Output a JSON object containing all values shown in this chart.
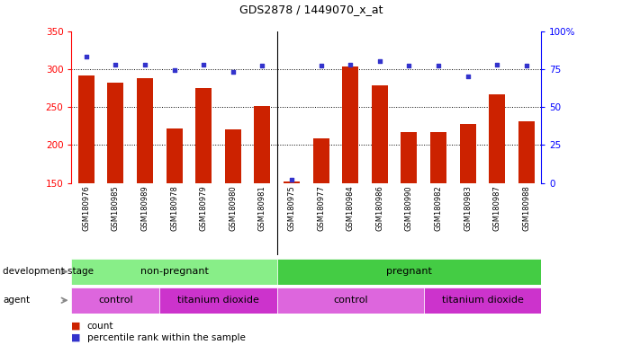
{
  "title": "GDS2878 / 1449070_x_at",
  "samples": [
    "GSM180976",
    "GSM180985",
    "GSM180989",
    "GSM180978",
    "GSM180979",
    "GSM180980",
    "GSM180981",
    "GSM180975",
    "GSM180977",
    "GSM180984",
    "GSM180986",
    "GSM180990",
    "GSM180982",
    "GSM180983",
    "GSM180987",
    "GSM180988"
  ],
  "counts": [
    291,
    282,
    288,
    222,
    275,
    221,
    251,
    152,
    209,
    303,
    279,
    217,
    217,
    228,
    267,
    231
  ],
  "percentile_ranks": [
    83,
    78,
    78,
    74,
    78,
    73,
    77,
    2,
    77,
    78,
    80,
    77,
    77,
    70,
    78,
    77
  ],
  "bar_color": "#cc2200",
  "dot_color": "#3333cc",
  "ylim_left": [
    150,
    350
  ],
  "ylim_right": [
    0,
    100
  ],
  "yticks_left": [
    150,
    200,
    250,
    300,
    350
  ],
  "yticks_right": [
    0,
    25,
    50,
    75,
    100
  ],
  "yticklabels_right": [
    "0",
    "25",
    "50",
    "75",
    "100%"
  ],
  "chart_bg": "#ffffff",
  "label_bg": "#d4d4d4",
  "dev_nonpreg_color": "#88ee88",
  "dev_preg_color": "#44cc44",
  "agent_light_color": "#dd66dd",
  "agent_dark_color": "#cc33cc",
  "nonpreg_count": 7,
  "preg_count": 9,
  "control1_count": 3,
  "titanium1_count": 4,
  "control2_count": 5,
  "titanium2_count": 4
}
